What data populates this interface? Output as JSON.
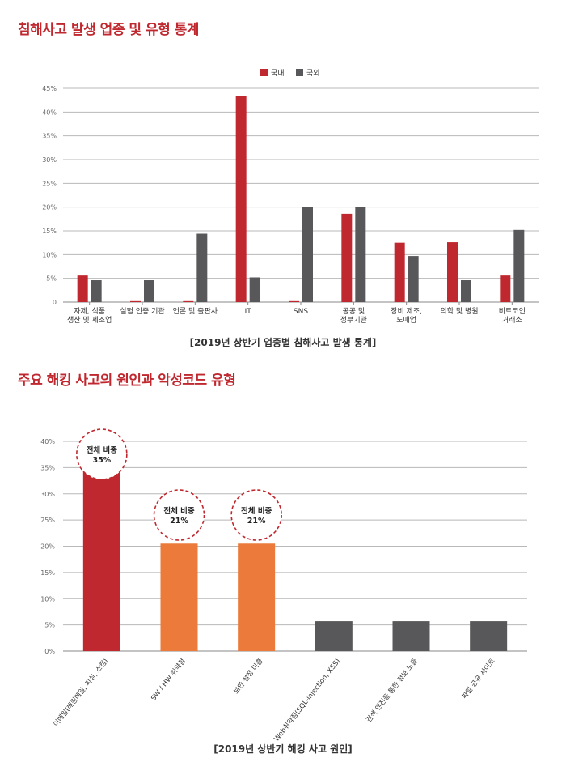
{
  "section1": {
    "title": "침해사고 발생 업종 및 유형 통계"
  },
  "section2": {
    "title": "주요 해킹 사고의 원인과 악성코드 유형"
  },
  "colors": {
    "domestic": "#c0282f",
    "foreign": "#58585a",
    "orange": "#ec7a3a",
    "gray": "#58585a",
    "grid": "#b8b8b8",
    "title": "#c0282f"
  },
  "chart_data": [
    {
      "type": "bar",
      "title": "",
      "caption": "[2019년 상반기 업종별 침해사고 발생 통계]",
      "categories": [
        [
          "자제, 식품",
          "생산 및 제조업"
        ],
        [
          "실험 인증 기관"
        ],
        [
          "언론 및 출판사"
        ],
        [
          "IT"
        ],
        [
          "SNS"
        ],
        [
          "공공 및",
          "정부기관"
        ],
        [
          "장비 제조,",
          "도매업"
        ],
        [
          "의학 및 병원"
        ],
        [
          "비트코인",
          "거래소"
        ]
      ],
      "series": [
        {
          "name": "국내",
          "color": "#c0282f",
          "values": [
            5.6,
            0.2,
            0.2,
            43.3,
            0.2,
            18.6,
            12.5,
            12.6,
            5.6
          ]
        },
        {
          "name": "국외",
          "color": "#58585a",
          "values": [
            4.6,
            4.6,
            14.4,
            5.2,
            20.1,
            20.1,
            9.7,
            4.6,
            15.2
          ]
        }
      ],
      "ylim": [
        0,
        45
      ],
      "yticks": [
        "0",
        "5%",
        "10%",
        "15%",
        "20%",
        "25%",
        "30%",
        "35%",
        "40%",
        "45%"
      ],
      "grid": true,
      "legend": "top-center"
    },
    {
      "type": "bar",
      "title": "",
      "caption": "[2019년 상반기 해킹 사고 원인]",
      "categories": [
        "이메일(해킹메일, 피싱, 스캠)",
        "SW / HW 취약점",
        "보안 설정 미흡",
        "Web취약점(SQL-injection, XSS)",
        "검색 엔진을 통한 정보 노출",
        "파일 공유 사이트"
      ],
      "values": [
        35,
        20.5,
        20.5,
        5.7,
        5.7,
        5.7
      ],
      "colors": [
        "#c0282f",
        "#ec7a3a",
        "#ec7a3a",
        "#58585a",
        "#58585a",
        "#58585a"
      ],
      "annotations": [
        {
          "index": 0,
          "label": "전체 비중",
          "value": "35%"
        },
        {
          "index": 1,
          "label": "전체 비중",
          "value": "21%"
        },
        {
          "index": 2,
          "label": "전체 비중",
          "value": "21%"
        }
      ],
      "ylim": [
        0,
        40
      ],
      "yticks": [
        "0%",
        "5%",
        "10%",
        "15%",
        "20%",
        "25%",
        "30%",
        "35%",
        "40%"
      ],
      "grid": true
    }
  ]
}
